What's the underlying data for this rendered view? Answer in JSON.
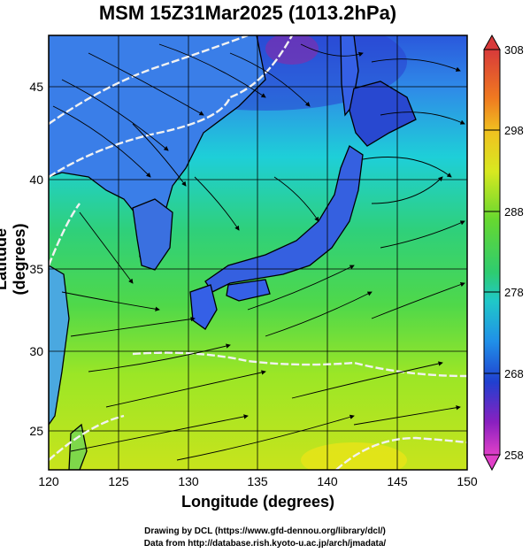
{
  "title": "MSM 15Z31Mar2025 (1013.2hPa)",
  "xlabel": "Longitude (degrees)",
  "ylabel": "Latitude  (degrees)",
  "x_ticks": [
    "120",
    "125",
    "130",
    "135",
    "140",
    "145",
    "150"
  ],
  "y_ticks": [
    "25",
    "30",
    "35",
    "40",
    "45"
  ],
  "colorbar_ticks": [
    "308",
    "298",
    "288",
    "278",
    "268",
    "258"
  ],
  "credit_line1": "Drawing by DCL (https://www.gfd-dennou.org/library/dcl/)",
  "credit_line2": "Data from http://database.rish.kyoto-u.ac.jp/arch/jmadata/",
  "chart_data": {
    "type": "heatmap",
    "variable_range": [
      258,
      308
    ],
    "xlim": [
      120,
      150
    ],
    "ylim": [
      22.4,
      47.6
    ],
    "colors": {
      "ocean_south": "#a8e61e",
      "ocean_mid": "#2ed26a",
      "ocean_north": "#18bfe8",
      "cold_north": "#2a4fd8",
      "land_cold": "#3060e0",
      "coast": "#000000",
      "contour": "#f0f0f0"
    }
  }
}
